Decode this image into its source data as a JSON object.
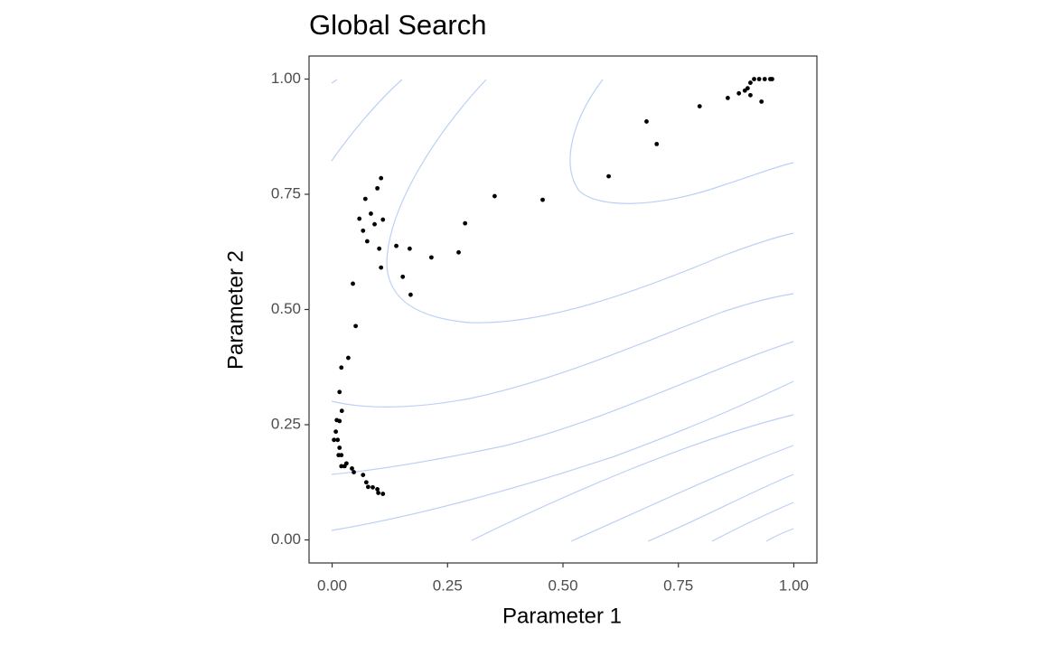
{
  "chart_data": {
    "type": "scatter",
    "title": "Global Search",
    "x_label": "Parameter 1",
    "y_label": "Parameter 2",
    "color": "#000000",
    "xlim": [
      -0.05,
      1.05
    ],
    "ylim": [
      -0.05,
      1.05
    ],
    "xticks": [
      {
        "value": 0,
        "label": "0.00"
      },
      {
        "value": 0.25,
        "label": "0.25"
      },
      {
        "value": 0.5,
        "label": "0.50"
      },
      {
        "value": 0.75,
        "label": "0.75"
      },
      {
        "value": 1,
        "label": "1.00"
      }
    ],
    "yticks": [
      {
        "value": 0,
        "label": "0.00"
      },
      {
        "value": 0.25,
        "label": "0.25"
      },
      {
        "value": 0.5,
        "label": "0.50"
      },
      {
        "value": 0.75,
        "label": "0.75"
      },
      {
        "value": 1,
        "label": "1.00"
      }
    ],
    "x": [
      0.004,
      0.01,
      0.008,
      0.016,
      0.016,
      0.02,
      0.035,
      0.021,
      0.012,
      0.016,
      0.014,
      0.02,
      0.02,
      0.027,
      0.031,
      0.043,
      0.047,
      0.067,
      0.074,
      0.078,
      0.088,
      0.098,
      0.1,
      0.11,
      0.051,
      0.045,
      0.059,
      0.067,
      0.076,
      0.072,
      0.084,
      0.092,
      0.102,
      0.098,
      0.106,
      0.11,
      0.106,
      0.139,
      0.153,
      0.168,
      0.17,
      0.215,
      0.274,
      0.288,
      0.352,
      0.456,
      0.599,
      0.681,
      0.703,
      0.796,
      0.857,
      0.881,
      0.894,
      0.9,
      0.906,
      0.93,
      0.906,
      0.914,
      0.925,
      0.937,
      0.949,
      0.953
    ],
    "y": [
      0.217,
      0.26,
      0.235,
      0.258,
      0.321,
      0.374,
      0.395,
      0.28,
      0.217,
      0.2,
      0.184,
      0.184,
      0.16,
      0.16,
      0.166,
      0.155,
      0.147,
      0.141,
      0.125,
      0.115,
      0.114,
      0.11,
      0.102,
      0.1,
      0.464,
      0.556,
      0.697,
      0.671,
      0.648,
      0.74,
      0.708,
      0.685,
      0.632,
      0.763,
      0.785,
      0.695,
      0.591,
      0.638,
      0.571,
      0.632,
      0.532,
      0.613,
      0.624,
      0.687,
      0.746,
      0.738,
      0.789,
      0.908,
      0.859,
      0.941,
      0.959,
      0.969,
      0.975,
      0.98,
      0.965,
      0.951,
      0.992,
      1.0,
      1.0,
      1.0,
      1.0,
      1.0
    ]
  }
}
